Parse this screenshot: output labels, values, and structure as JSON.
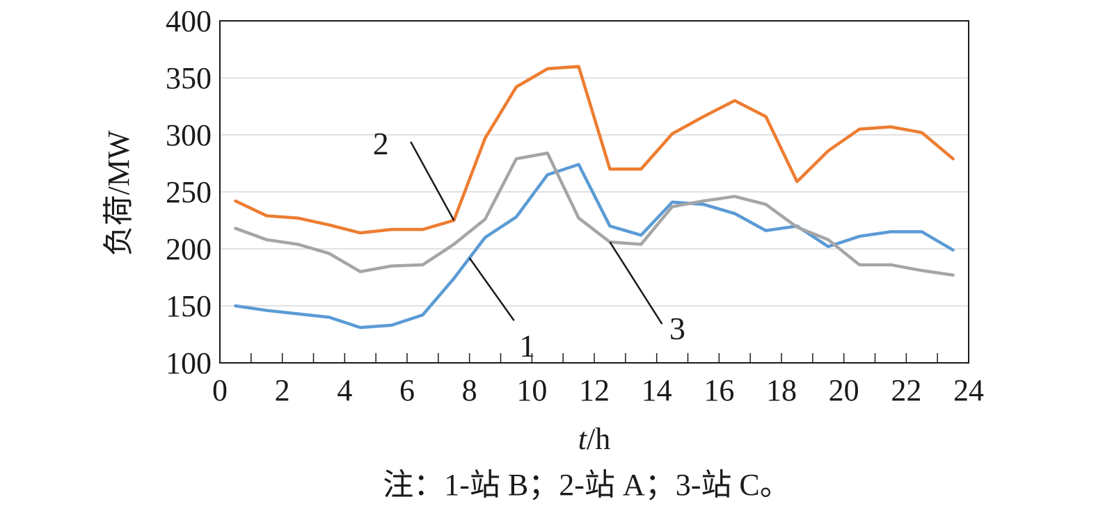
{
  "chart_data": {
    "type": "line",
    "title": "",
    "xlabel_italic": "t",
    "xlabel_rest": "/h",
    "ylabel": "负荷/MW",
    "xlim": [
      0,
      24
    ],
    "ylim": [
      100,
      400
    ],
    "xticks": [
      0,
      2,
      4,
      6,
      8,
      10,
      12,
      14,
      16,
      18,
      20,
      22,
      24
    ],
    "yticks": [
      100,
      150,
      200,
      250,
      300,
      350,
      400
    ],
    "grid": "horizontal",
    "x": [
      0.5,
      1.5,
      2.5,
      3.5,
      4.5,
      5.5,
      6.5,
      7.5,
      8.5,
      9.5,
      10.5,
      11.5,
      12.5,
      13.5,
      14.5,
      15.5,
      16.5,
      17.5,
      18.5,
      19.5,
      20.5,
      21.5,
      22.5,
      23.5
    ],
    "series": [
      {
        "label": "1",
        "color": "#5b9bd5",
        "values": [
          150,
          146,
          143,
          140,
          131,
          133,
          142,
          174,
          210,
          228,
          265,
          274,
          220,
          212,
          241,
          239,
          231,
          216,
          220,
          202,
          211,
          215,
          215,
          199
        ]
      },
      {
        "label": "2",
        "color": "#ed7d31",
        "values": [
          242,
          229,
          227,
          221,
          214,
          217,
          217,
          225,
          297,
          342,
          358,
          360,
          270,
          270,
          301,
          316,
          330,
          316,
          259,
          286,
          305,
          307,
          302,
          279
        ]
      },
      {
        "label": "3",
        "color": "#a5a5a5",
        "values": [
          218,
          208,
          204,
          196,
          180,
          185,
          186,
          204,
          226,
          279,
          284,
          227,
          206,
          204,
          237,
          242,
          246,
          239,
          219,
          208,
          186,
          186,
          181,
          177
        ]
      }
    ],
    "callouts": [
      {
        "text": "2",
        "series": 1,
        "x": 7.5
      },
      {
        "text": "1",
        "series": 0,
        "x": 8.0
      },
      {
        "text": "3",
        "series": 2,
        "x": 12.5
      }
    ],
    "note": "注：1-站 B；2-站 A；3-站 C。"
  }
}
